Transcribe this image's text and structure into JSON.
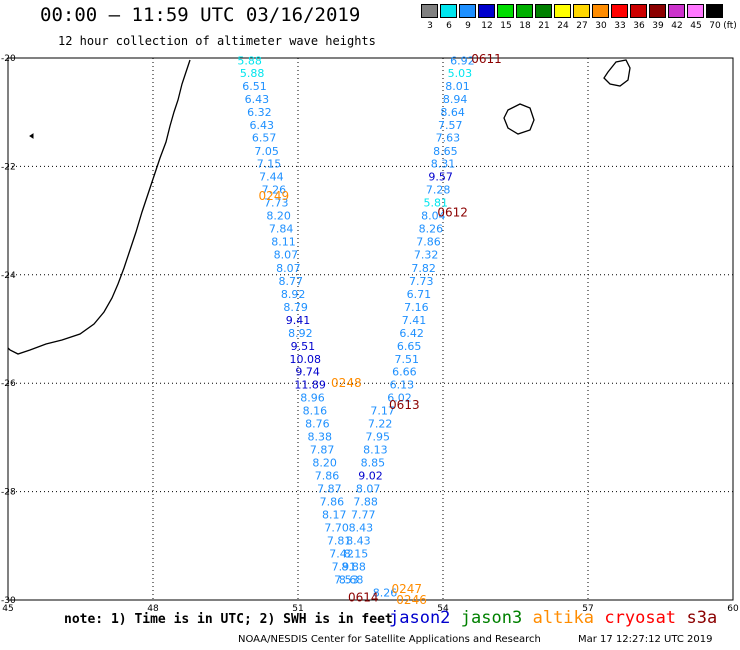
{
  "header": {
    "title": "00:00 – 11:59 UTC 03/16/2019",
    "subtitle": "12 hour collection of altimeter wave heights"
  },
  "color_scale": {
    "unit_label": "(ft)",
    "bins": [
      {
        "label": "3",
        "color": "#808080"
      },
      {
        "label": "6",
        "color": "#00e5ee"
      },
      {
        "label": "9",
        "color": "#1e90ff"
      },
      {
        "label": "12",
        "color": "#0000cd"
      },
      {
        "label": "15",
        "color": "#00dd00"
      },
      {
        "label": "18",
        "color": "#00b000"
      },
      {
        "label": "21",
        "color": "#008000"
      },
      {
        "label": "24",
        "color": "#ffff00"
      },
      {
        "label": "27",
        "color": "#ffd700"
      },
      {
        "label": "30",
        "color": "#ff8c00"
      },
      {
        "label": "33",
        "color": "#ff0000"
      },
      {
        "label": "36",
        "color": "#cc0000"
      },
      {
        "label": "39",
        "color": "#8b0000"
      },
      {
        "label": "42",
        "color": "#cc33cc"
      },
      {
        "label": "45",
        "color": "#ff77ff"
      },
      {
        "label": "70",
        "color": "#000000"
      }
    ]
  },
  "map": {
    "lon_range": [
      45,
      60
    ],
    "lat_range": [
      -30,
      -20
    ],
    "lon_ticks": [
      "45",
      "48",
      "51",
      "54",
      "57",
      "60"
    ],
    "lat_ticks": [
      "-20",
      "-22",
      "-24",
      "-26",
      "-28",
      "-30"
    ],
    "grid": true
  },
  "chart_data": {
    "type": "scatter",
    "tracks": [
      {
        "label": "0249",
        "label_color": "#ff8c00",
        "label_pos": [
          50.5,
          -22.55
        ],
        "points": [
          {
            "lon": 50.0,
            "lat": -20.05,
            "v": "5.88"
          },
          {
            "lon": 50.05,
            "lat": -20.28,
            "v": "5.88"
          },
          {
            "lon": 50.1,
            "lat": -20.52,
            "v": "6.51"
          },
          {
            "lon": 50.15,
            "lat": -20.76,
            "v": "6.43"
          },
          {
            "lon": 50.2,
            "lat": -21.0,
            "v": "6.32"
          },
          {
            "lon": 50.25,
            "lat": -21.24,
            "v": "6.43"
          },
          {
            "lon": 50.3,
            "lat": -21.47,
            "v": "6.57"
          },
          {
            "lon": 50.35,
            "lat": -21.72,
            "v": "7.05"
          },
          {
            "lon": 50.4,
            "lat": -21.95,
            "v": "7.15"
          },
          {
            "lon": 50.45,
            "lat": -22.19,
            "v": "7.44"
          },
          {
            "lon": 50.5,
            "lat": -22.43,
            "v": "7.26"
          },
          {
            "lon": 50.55,
            "lat": -22.67,
            "v": "7.73"
          },
          {
            "lon": 50.6,
            "lat": -22.91,
            "v": "8.20"
          },
          {
            "lon": 50.65,
            "lat": -23.15,
            "v": "7.84"
          },
          {
            "lon": 50.7,
            "lat": -23.39,
            "v": "8.11"
          },
          {
            "lon": 50.75,
            "lat": -23.63,
            "v": "8.07"
          },
          {
            "lon": 50.8,
            "lat": -23.87,
            "v": "8.07"
          },
          {
            "lon": 50.85,
            "lat": -24.11,
            "v": "8.77"
          },
          {
            "lon": 50.9,
            "lat": -24.35,
            "v": "8.92"
          },
          {
            "lon": 50.95,
            "lat": -24.59,
            "v": "8.79"
          },
          {
            "lon": 51.0,
            "lat": -24.83,
            "v": "9.41"
          },
          {
            "lon": 51.05,
            "lat": -25.07,
            "v": "8.92"
          },
          {
            "lon": 51.1,
            "lat": -25.31,
            "v": "9.51"
          },
          {
            "lon": 51.15,
            "lat": -25.55,
            "v": "10.08"
          },
          {
            "lon": 51.2,
            "lat": -25.78,
            "v": "9.74"
          },
          {
            "lon": 51.25,
            "lat": -26.02,
            "v": "11.89"
          },
          {
            "lon": 51.3,
            "lat": -26.26,
            "v": "8.96"
          },
          {
            "lon": 51.35,
            "lat": -26.5,
            "v": "8.16"
          },
          {
            "lon": 51.4,
            "lat": -26.74,
            "v": "8.76"
          },
          {
            "lon": 51.45,
            "lat": -26.98,
            "v": "8.38"
          },
          {
            "lon": 51.5,
            "lat": -27.22,
            "v": "7.87"
          },
          {
            "lon": 51.55,
            "lat": -27.46,
            "v": "8.20"
          },
          {
            "lon": 51.6,
            "lat": -27.7,
            "v": "7.86"
          },
          {
            "lon": 51.65,
            "lat": -27.94,
            "v": "7.87"
          },
          {
            "lon": 51.7,
            "lat": -28.18,
            "v": "7.86"
          },
          {
            "lon": 51.75,
            "lat": -28.42,
            "v": "8.17"
          },
          {
            "lon": 51.8,
            "lat": -28.66,
            "v": "7.70"
          },
          {
            "lon": 51.85,
            "lat": -28.9,
            "v": "7.81"
          },
          {
            "lon": 51.9,
            "lat": -29.14,
            "v": "7.42"
          },
          {
            "lon": 51.95,
            "lat": -29.38,
            "v": "7.91"
          },
          {
            "lon": 52.0,
            "lat": -29.62,
            "v": "7.53"
          }
        ]
      },
      {
        "label": "0248",
        "label_color": "#ff8c00",
        "label_pos": [
          52.0,
          -26.0
        ],
        "points": []
      },
      {
        "label": "0611",
        "label_color": "#8b0000",
        "label_pos": [
          54.9,
          -20.02
        ],
        "points": [
          {
            "lon": 54.4,
            "lat": -20.05,
            "v": "6.92"
          },
          {
            "lon": 54.35,
            "lat": -20.28,
            "v": "5.03"
          },
          {
            "lon": 54.3,
            "lat": -20.52,
            "v": "8.01"
          },
          {
            "lon": 54.25,
            "lat": -20.76,
            "v": "8.94"
          },
          {
            "lon": 54.2,
            "lat": -21.0,
            "v": "8.64"
          },
          {
            "lon": 54.15,
            "lat": -21.24,
            "v": "7.57"
          },
          {
            "lon": 54.1,
            "lat": -21.47,
            "v": "7.63"
          },
          {
            "lon": 54.05,
            "lat": -21.72,
            "v": "8.65"
          },
          {
            "lon": 54.0,
            "lat": -21.95,
            "v": "8.31"
          },
          {
            "lon": 53.95,
            "lat": -22.19,
            "v": "9.57"
          },
          {
            "lon": 53.9,
            "lat": -22.43,
            "v": "7.28"
          },
          {
            "lon": 53.85,
            "lat": -22.67,
            "v": "5.81"
          },
          {
            "lon": 53.8,
            "lat": -22.91,
            "v": "8.04"
          },
          {
            "lon": 53.75,
            "lat": -23.15,
            "v": "8.26"
          },
          {
            "lon": 53.7,
            "lat": -23.39,
            "v": "7.86"
          },
          {
            "lon": 53.65,
            "lat": -23.63,
            "v": "7.32"
          },
          {
            "lon": 53.6,
            "lat": -23.87,
            "v": "7.82"
          },
          {
            "lon": 53.55,
            "lat": -24.11,
            "v": "7.73"
          },
          {
            "lon": 53.5,
            "lat": -24.35,
            "v": "6.71"
          },
          {
            "lon": 53.45,
            "lat": -24.59,
            "v": "7.16"
          },
          {
            "lon": 53.4,
            "lat": -24.83,
            "v": "7.41"
          },
          {
            "lon": 53.35,
            "lat": -25.07,
            "v": "6.42"
          },
          {
            "lon": 53.3,
            "lat": -25.31,
            "v": "6.65"
          },
          {
            "lon": 53.25,
            "lat": -25.55,
            "v": "7.51"
          },
          {
            "lon": 53.2,
            "lat": -25.78,
            "v": "6.66"
          },
          {
            "lon": 53.15,
            "lat": -26.02,
            "v": "6.13"
          },
          {
            "lon": 53.1,
            "lat": -26.26,
            "v": "6.02"
          }
        ]
      },
      {
        "label": "0612",
        "label_color": "#8b0000",
        "label_pos": [
          54.2,
          -22.85
        ],
        "points": []
      },
      {
        "label": "0613",
        "label_color": "#8b0000",
        "label_pos": [
          53.2,
          -26.4
        ],
        "points": [
          {
            "lon": 52.75,
            "lat": -26.5,
            "v": "7.17"
          },
          {
            "lon": 52.7,
            "lat": -26.74,
            "v": "7.22"
          },
          {
            "lon": 52.65,
            "lat": -26.98,
            "v": "7.95"
          },
          {
            "lon": 52.6,
            "lat": -27.22,
            "v": "8.13"
          },
          {
            "lon": 52.55,
            "lat": -27.46,
            "v": "8.85"
          },
          {
            "lon": 52.5,
            "lat": -27.7,
            "v": "9.02"
          },
          {
            "lon": 52.45,
            "lat": -27.94,
            "v": "8.07"
          },
          {
            "lon": 52.4,
            "lat": -28.18,
            "v": "7.88"
          },
          {
            "lon": 52.35,
            "lat": -28.42,
            "v": "7.77"
          },
          {
            "lon": 52.3,
            "lat": -28.66,
            "v": "8.43"
          },
          {
            "lon": 52.25,
            "lat": -28.9,
            "v": "8.43"
          },
          {
            "lon": 52.2,
            "lat": -29.14,
            "v": "8.15"
          },
          {
            "lon": 52.15,
            "lat": -29.38,
            "v": "8.88"
          },
          {
            "lon": 52.1,
            "lat": -29.62,
            "v": "8.68"
          },
          {
            "lon": 52.8,
            "lat": -29.86,
            "v": "8.26"
          }
        ]
      },
      {
        "label": "0614",
        "label_color": "#8b0000",
        "label_pos": [
          52.35,
          -29.95
        ],
        "points": []
      },
      {
        "label": "0247",
        "label_color": "#ff8c00",
        "label_pos": [
          53.25,
          -29.8
        ],
        "points": []
      },
      {
        "label": "0246",
        "label_color": "#ff8c00",
        "label_pos": [
          53.35,
          -30.0
        ],
        "points": []
      }
    ]
  },
  "footer": {
    "note": "note: 1) Time is in UTC; 2) SWH is in feet",
    "satellites": [
      {
        "name": "jason2",
        "color": "#0000cd"
      },
      {
        "name": "jason3",
        "color": "#008000"
      },
      {
        "name": "altika",
        "color": "#ff8c00"
      },
      {
        "name": "cryosat",
        "color": "#ff0000"
      },
      {
        "name": "s3a",
        "color": "#8b0000"
      }
    ],
    "credit": "NOAA/NESDIS Center for Satellite Applications and Research",
    "timestamp": "Mar 17 12:27:12 UTC 2019"
  }
}
